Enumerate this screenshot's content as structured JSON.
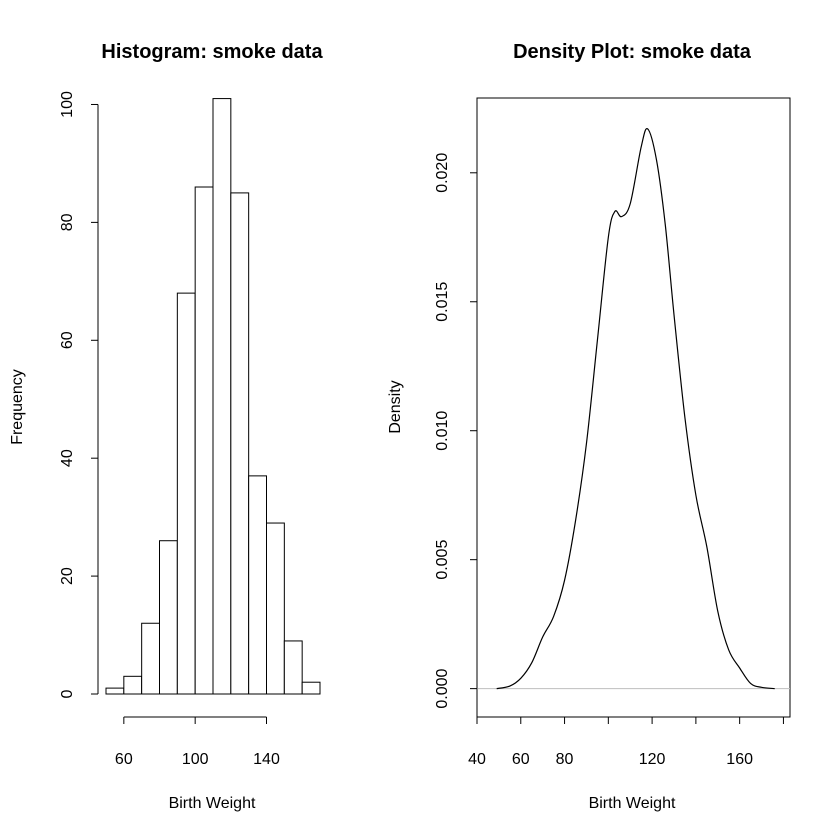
{
  "chart_data": [
    {
      "type": "bar",
      "title": "Histogram: smoke data",
      "xlabel": "Birth Weight",
      "ylabel": "Frequency",
      "bins": [
        [
          50,
          60
        ],
        [
          60,
          70
        ],
        [
          70,
          80
        ],
        [
          80,
          90
        ],
        [
          90,
          100
        ],
        [
          100,
          110
        ],
        [
          110,
          120
        ],
        [
          120,
          130
        ],
        [
          130,
          140
        ],
        [
          140,
          150
        ],
        [
          150,
          160
        ],
        [
          160,
          170
        ]
      ],
      "values": [
        1,
        3,
        12,
        26,
        68,
        86,
        101,
        85,
        37,
        29,
        9,
        2
      ],
      "xlim": [
        50,
        170
      ],
      "ylim": [
        0,
        105
      ],
      "xticks": [
        "60",
        "100",
        "140"
      ],
      "yticks": [
        "0",
        "20",
        "40",
        "60",
        "80",
        "100"
      ],
      "grid": false
    },
    {
      "type": "line",
      "title": "Density Plot: smoke data",
      "xlabel": "Birth Weight",
      "ylabel": "Density",
      "x": [
        49,
        55,
        60,
        65,
        70,
        75,
        80,
        85,
        90,
        95,
        100,
        103,
        106,
        110,
        115,
        118,
        122,
        126,
        130,
        135,
        140,
        145,
        150,
        155,
        160,
        165,
        170,
        176
      ],
      "y": [
        0.0,
        0.0001,
        0.0004,
        0.001,
        0.002,
        0.0028,
        0.0042,
        0.0065,
        0.0095,
        0.0135,
        0.0175,
        0.0185,
        0.0183,
        0.0188,
        0.021,
        0.0217,
        0.0205,
        0.018,
        0.0145,
        0.0105,
        0.0075,
        0.0055,
        0.003,
        0.0015,
        0.0008,
        0.0002,
        5e-05,
        0.0
      ],
      "xlim": [
        40,
        183
      ],
      "ylim": [
        -0.0011,
        0.0229
      ],
      "xticks": [
        "40",
        "60",
        "80",
        "120",
        "160"
      ],
      "yticks": [
        "0.000",
        "0.005",
        "0.010",
        "0.015",
        "0.020"
      ],
      "baseline_color": "#bebebe",
      "grid": false
    }
  ]
}
